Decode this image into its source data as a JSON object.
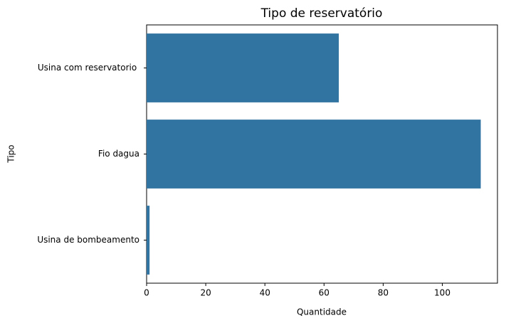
{
  "chart_data": {
    "type": "hbar",
    "title": "Tipo de reservatório",
    "categories": [
      "Usina com reservatorio ",
      "Fio dagua",
      "Usina de bombeamento"
    ],
    "values": [
      65,
      113,
      1
    ],
    "color": "#3274a1",
    "xlabel": "Quantidade",
    "ylabel": "Tipo",
    "xlim": [
      0,
      118.65
    ],
    "xticks": [
      0,
      20,
      40,
      60,
      80,
      100
    ]
  }
}
